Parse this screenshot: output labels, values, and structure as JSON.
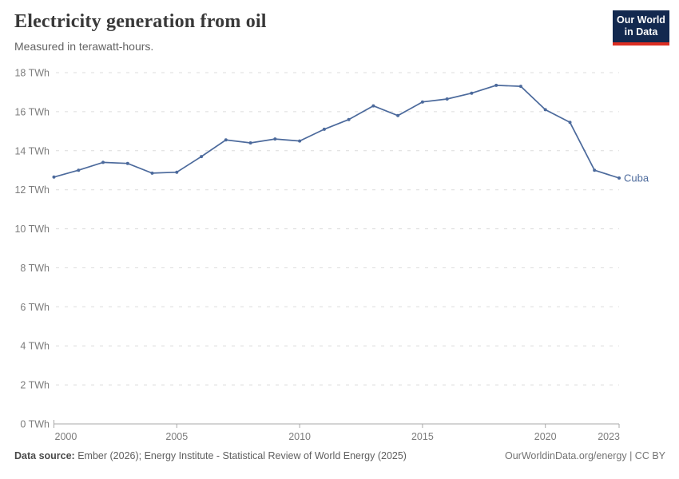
{
  "header": {
    "title": "Electricity generation from oil",
    "subtitle": "Measured in terawatt-hours."
  },
  "logo": {
    "line1": "Our World",
    "line2": "in Data",
    "bg_color": "#13294f",
    "accent_color": "#dc2e22"
  },
  "chart_data": {
    "type": "line",
    "title": "Electricity generation from oil",
    "unit": "TWh",
    "x": [
      2000,
      2001,
      2002,
      2003,
      2004,
      2005,
      2006,
      2007,
      2008,
      2009,
      2010,
      2011,
      2012,
      2013,
      2014,
      2015,
      2016,
      2017,
      2018,
      2019,
      2020,
      2021,
      2022,
      2023
    ],
    "series": [
      {
        "name": "Cuba",
        "color": "#4C6A9C",
        "values": [
          12.65,
          13.0,
          13.4,
          13.35,
          12.85,
          12.9,
          13.7,
          14.55,
          14.4,
          14.6,
          14.5,
          15.1,
          15.6,
          16.3,
          15.8,
          16.5,
          16.65,
          16.95,
          17.35,
          17.3,
          16.1,
          15.45,
          13.0,
          12.6
        ]
      }
    ],
    "ylim": [
      0,
      18
    ],
    "yticks": [
      0,
      2,
      4,
      6,
      8,
      10,
      12,
      14,
      16,
      18
    ],
    "ytick_suffix": " TWh",
    "xticks": [
      2000,
      2005,
      2010,
      2015,
      2020,
      2023
    ],
    "grid": true,
    "legend_position": "end-of-line",
    "colors": {
      "gridline": "#dcdcdc",
      "axis": "#a8a8a8",
      "tick_text": "#7c7c7c"
    }
  },
  "footer": {
    "source_label": "Data source:",
    "source_text": " Ember (2026); Energy Institute - Statistical Review of World Energy (2025)",
    "right_text": "OurWorldinData.org/energy | CC BY"
  }
}
